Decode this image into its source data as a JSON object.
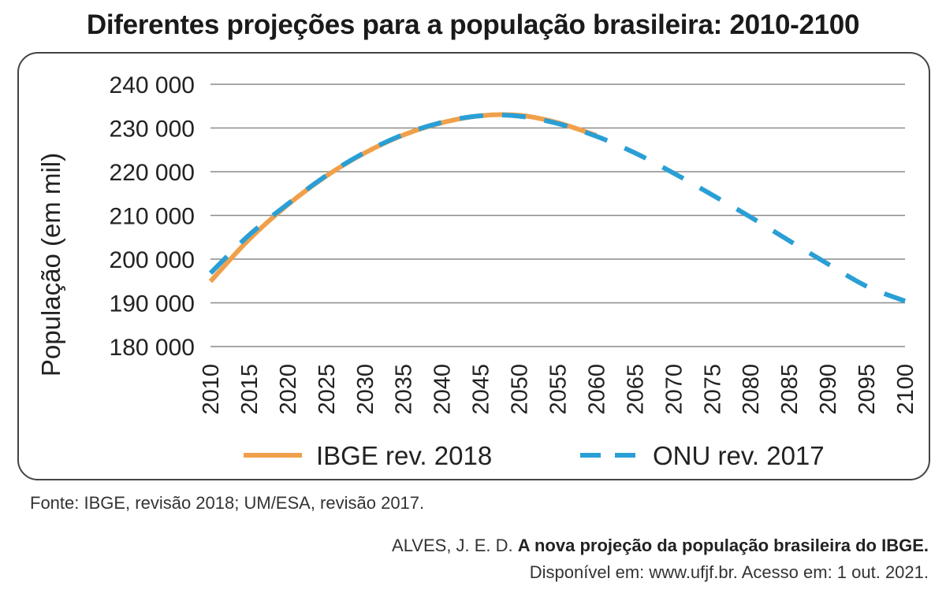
{
  "title": "Diferentes projeções para a população brasileira: 2010-2100",
  "source": "Fonte: IBGE, revisão 2018; UM/ESA, revisão 2017.",
  "citation": {
    "author": "ALVES, J. E. D.",
    "work_title": "A nova projeção da população brasileira do IBGE.",
    "availability": "Disponível em: www.ufjf.br. Acesso em: 1 out. 2021."
  },
  "chart_data": {
    "type": "line",
    "ylabel": "População (em mil)",
    "xlabel": "",
    "ylim": [
      180000,
      240000
    ],
    "ytick_values": [
      180000,
      190000,
      200000,
      210000,
      220000,
      230000,
      240000
    ],
    "ytick_labels": [
      "180 000",
      "190 000",
      "200 000",
      "210 000",
      "220 000",
      "230 000",
      "240 000"
    ],
    "xtick_labels": [
      "2010",
      "2015",
      "2020",
      "2025",
      "2030",
      "2035",
      "2040",
      "2045",
      "2050",
      "2055",
      "2060",
      "2065",
      "2070",
      "2075",
      "2080",
      "2085",
      "2090",
      "2095",
      "2100"
    ],
    "xlim": [
      2010,
      2100
    ],
    "grid": true,
    "legend_position": "bottom",
    "series": [
      {
        "name": "IBGE rev. 2018",
        "color": "#f0a04b",
        "style": "solid",
        "x": [
          2010,
          2015,
          2020,
          2025,
          2030,
          2035,
          2040,
          2045,
          2050,
          2055,
          2060
        ],
        "y": [
          194900,
          204500,
          212400,
          219000,
          224300,
          228400,
          231200,
          232800,
          232900,
          231200,
          228300
        ]
      },
      {
        "name": "ONU rev. 2017",
        "color": "#2a9fd6",
        "style": "dashed",
        "x": [
          2010,
          2015,
          2020,
          2025,
          2030,
          2035,
          2040,
          2045,
          2050,
          2055,
          2060,
          2065,
          2070,
          2075,
          2080,
          2085,
          2090,
          2095,
          2100
        ],
        "y": [
          196800,
          205500,
          212600,
          219100,
          224400,
          228500,
          231300,
          232800,
          232700,
          231000,
          228100,
          224300,
          219700,
          214700,
          209600,
          204200,
          198900,
          193800,
          190400
        ]
      }
    ]
  }
}
